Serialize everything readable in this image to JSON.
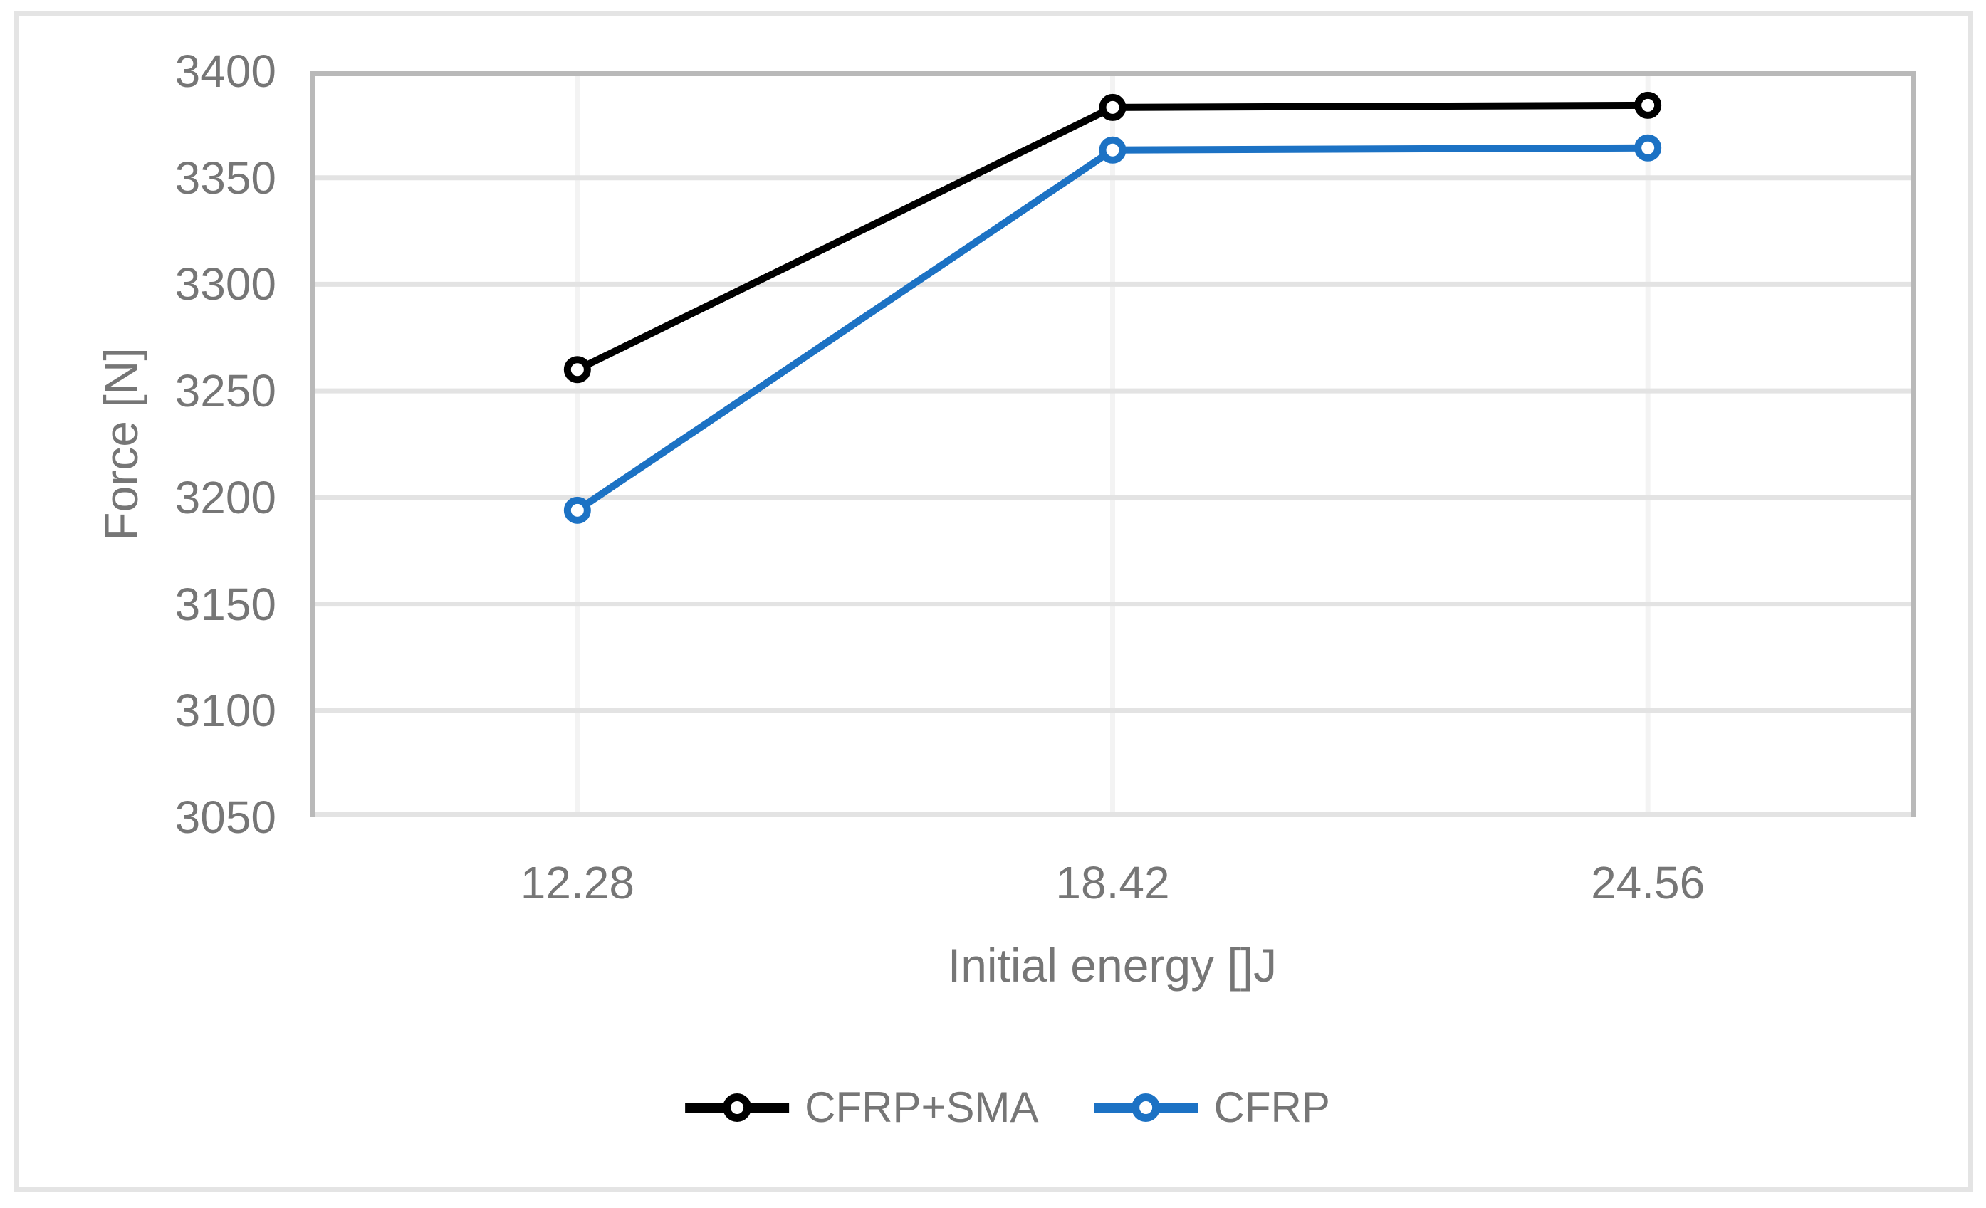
{
  "figure": {
    "background": "#FFFFFF",
    "border_color": "#E4E4E4"
  },
  "chart_data": {
    "type": "line",
    "title": "",
    "xlabel": "Initial energy []J",
    "ylabel": "Force [N]",
    "categories": [
      "12.28",
      "18.42",
      "24.56"
    ],
    "series": [
      {
        "name": "CFRP+SMA",
        "color": "#000000",
        "marker": "open-circle",
        "values": [
          3260,
          3383,
          3384
        ]
      },
      {
        "name": "CFRP",
        "color": "#1C72C4",
        "marker": "open-circle",
        "values": [
          3194,
          3363,
          3364
        ]
      }
    ],
    "ylim": [
      3050,
      3400
    ],
    "ytick_step": 50,
    "yticks": [
      "3400",
      "3350",
      "3300",
      "3250",
      "3200",
      "3150",
      "3100",
      "3050"
    ],
    "grid": "horizontal-and-vertical",
    "legend_position": "bottom",
    "style": {
      "axis_border_color": "#B9B9B9",
      "gridline_color": "#E3E3E3",
      "vertical_gridline_color": "#F3F3F3",
      "text_color": "#767676"
    }
  }
}
